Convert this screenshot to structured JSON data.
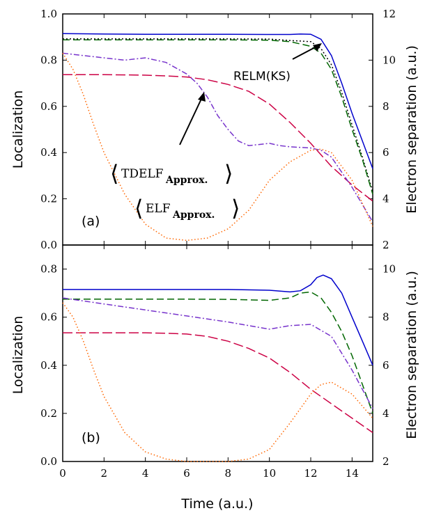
{
  "x_axis_label": "Time (a.u.)",
  "chart_data": [
    {
      "type": "line",
      "panel_label": "(a)",
      "xlim": [
        0,
        15
      ],
      "ylim": [
        0.0,
        1.0
      ],
      "y2lim": [
        2,
        12
      ],
      "ylabel": "Localization",
      "y2label": "Electron separation (a.u.)",
      "x_ticks": [
        0,
        2,
        4,
        6,
        8,
        10,
        12,
        14
      ],
      "y_ticks": [
        "0.0",
        "0.2",
        "0.4",
        "0.6",
        "0.8",
        "1.0"
      ],
      "y2_ticks": [
        "2",
        "4",
        "6",
        "8",
        "10",
        "12"
      ],
      "annotations": {
        "relm": "RELM(KS)",
        "tdelf_main": "TDELF",
        "tdelf_sub": "Approx.",
        "elf_main": "ELF",
        "elf_sub": "Approx."
      },
      "series": [
        {
          "color": "#0000cc",
          "dash": "",
          "x": [
            0,
            2,
            4,
            6,
            8,
            10,
            11,
            11.5,
            12,
            12.5,
            13,
            13.5,
            14,
            14.5,
            15
          ],
          "y": [
            0.915,
            0.913,
            0.912,
            0.912,
            0.912,
            0.911,
            0.911,
            0.913,
            0.912,
            0.89,
            0.82,
            0.7,
            0.57,
            0.45,
            0.33
          ]
        },
        {
          "color": "#000000",
          "dash": "2,3",
          "x": [
            0,
            2,
            4,
            6,
            8,
            10,
            11,
            12,
            12.5,
            13,
            13.5,
            14,
            14.5,
            15
          ],
          "y": [
            0.892,
            0.892,
            0.892,
            0.892,
            0.892,
            0.891,
            0.885,
            0.88,
            0.85,
            0.78,
            0.66,
            0.52,
            0.38,
            0.23
          ]
        },
        {
          "color": "#006600",
          "dash": "10,5",
          "x": [
            0,
            2,
            4,
            6,
            8,
            10,
            11,
            12,
            12.5,
            13,
            13.5,
            14,
            14.5,
            15
          ],
          "y": [
            0.888,
            0.888,
            0.888,
            0.888,
            0.888,
            0.886,
            0.88,
            0.86,
            0.83,
            0.76,
            0.64,
            0.5,
            0.37,
            0.22
          ]
        },
        {
          "color": "#cc0044",
          "dash": "14,5",
          "x": [
            0,
            1,
            2,
            3,
            4,
            5,
            6,
            7,
            8,
            9,
            10,
            11,
            12,
            13,
            14,
            15
          ],
          "y": [
            0.737,
            0.737,
            0.737,
            0.736,
            0.735,
            0.732,
            0.727,
            0.715,
            0.695,
            0.665,
            0.61,
            0.53,
            0.44,
            0.34,
            0.26,
            0.19
          ]
        },
        {
          "color": "#7733cc",
          "dash": "8,3,2,3",
          "x": [
            0,
            1,
            2,
            3,
            4,
            5,
            6,
            6.5,
            7,
            7.5,
            8,
            8.5,
            9,
            9.5,
            10,
            10.5,
            11,
            12,
            12.5,
            13,
            14,
            15
          ],
          "y": [
            0.83,
            0.82,
            0.81,
            0.8,
            0.81,
            0.79,
            0.74,
            0.7,
            0.64,
            0.56,
            0.5,
            0.45,
            0.43,
            0.435,
            0.44,
            0.43,
            0.425,
            0.42,
            0.41,
            0.38,
            0.25,
            0.1
          ]
        },
        {
          "color": "#ff6600",
          "dash": "1.5,3",
          "x": [
            0,
            0.5,
            1,
            1.5,
            2,
            3,
            4,
            5,
            6,
            7,
            8,
            9,
            10,
            11,
            12,
            12.5,
            13,
            14,
            15
          ],
          "y": [
            0.83,
            0.76,
            0.65,
            0.52,
            0.4,
            0.22,
            0.09,
            0.03,
            0.02,
            0.03,
            0.07,
            0.15,
            0.28,
            0.36,
            0.41,
            0.415,
            0.4,
            0.28,
            0.08
          ]
        }
      ]
    },
    {
      "type": "line",
      "panel_label": "(b)",
      "xlim": [
        0,
        15
      ],
      "ylim": [
        0.0,
        0.9
      ],
      "y2lim": [
        2,
        11
      ],
      "ylabel": "Localization",
      "y2label": "Electron separation (a.u.)",
      "x_ticks": [
        0,
        2,
        4,
        6,
        8,
        10,
        12,
        14
      ],
      "y_ticks": [
        "0.0",
        "0.2",
        "0.4",
        "0.6",
        "0.8"
      ],
      "y2_ticks": [
        "2",
        "4",
        "6",
        "8",
        "10"
      ],
      "series": [
        {
          "color": "#0000cc",
          "dash": "",
          "x": [
            0,
            2,
            4,
            6,
            8,
            10,
            11,
            11.5,
            12,
            12.3,
            12.6,
            13,
            13.5,
            14,
            14.5,
            15
          ],
          "y": [
            0.715,
            0.715,
            0.715,
            0.715,
            0.715,
            0.712,
            0.705,
            0.71,
            0.735,
            0.765,
            0.775,
            0.76,
            0.7,
            0.6,
            0.5,
            0.4
          ]
        },
        {
          "color": "#006600",
          "dash": "10,5",
          "x": [
            0,
            2,
            4,
            6,
            8,
            10,
            11,
            11.5,
            12,
            12.5,
            13,
            13.5,
            14,
            14.5,
            15
          ],
          "y": [
            0.675,
            0.675,
            0.675,
            0.675,
            0.674,
            0.67,
            0.68,
            0.7,
            0.705,
            0.68,
            0.62,
            0.54,
            0.44,
            0.32,
            0.2
          ]
        },
        {
          "color": "#7733cc",
          "dash": "8,3,2,3",
          "x": [
            0,
            2,
            4,
            6,
            8,
            9,
            10,
            11,
            12,
            13,
            14,
            15
          ],
          "y": [
            0.68,
            0.655,
            0.63,
            0.605,
            0.58,
            0.565,
            0.55,
            0.565,
            0.57,
            0.52,
            0.38,
            0.22
          ]
        },
        {
          "color": "#cc0044",
          "dash": "14,5",
          "x": [
            0,
            1,
            2,
            3,
            4,
            5,
            6,
            7,
            8,
            9,
            10,
            11,
            12,
            13,
            14,
            15
          ],
          "y": [
            0.535,
            0.535,
            0.535,
            0.535,
            0.535,
            0.533,
            0.53,
            0.52,
            0.5,
            0.47,
            0.43,
            0.37,
            0.3,
            0.24,
            0.18,
            0.12
          ]
        },
        {
          "color": "#ff6600",
          "dash": "1.5,3",
          "x": [
            0,
            0.5,
            1,
            1.5,
            2,
            3,
            4,
            5,
            6,
            7,
            8,
            9,
            10,
            11,
            12,
            12.5,
            13,
            14,
            15
          ],
          "y": [
            0.66,
            0.6,
            0.5,
            0.38,
            0.27,
            0.12,
            0.04,
            0.01,
            0.0,
            0.0,
            0.0,
            0.01,
            0.05,
            0.16,
            0.28,
            0.32,
            0.33,
            0.28,
            0.18
          ]
        }
      ]
    }
  ]
}
